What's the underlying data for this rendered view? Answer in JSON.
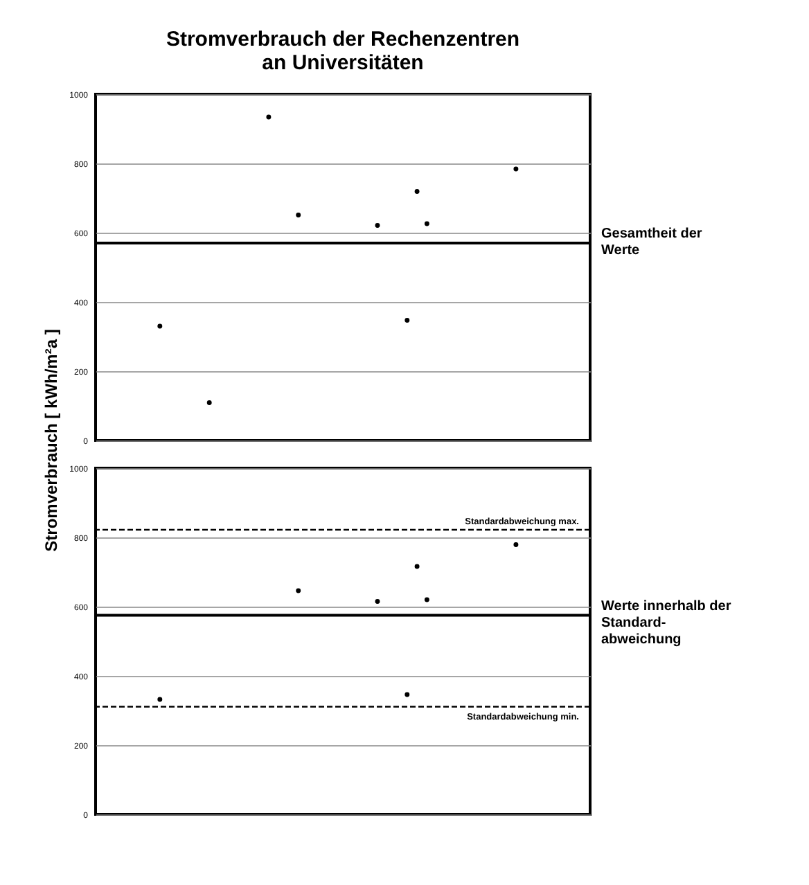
{
  "chart_data": [
    {
      "type": "scatter",
      "title": "Stromverbrauch der Rechenzentren\nan Universitäten",
      "ylabel": "Stromverbrauch  [ kWh/m²a ]",
      "categories": [
        null,
        null,
        null,
        null,
        null,
        null,
        null,
        null,
        null,
        null,
        null,
        null,
        null,
        null,
        null,
        null,
        null,
        null,
        null,
        null,
        null,
        null,
        null,
        null,
        null,
        null,
        null,
        null,
        null,
        null,
        null,
        null,
        null,
        null,
        null,
        null,
        null,
        null,
        null,
        null,
        null,
        null,
        null,
        null,
        null,
        null,
        null,
        null,
        null,
        null
      ],
      "series": [
        {
          "color": "#000000",
          "values": [
            null,
            null,
            null,
            null,
            null,
            null,
            330,
            null,
            null,
            null,
            null,
            109,
            null,
            null,
            null,
            null,
            null,
            934,
            null,
            null,
            651,
            null,
            null,
            null,
            null,
            null,
            null,
            null,
            621,
            null,
            null,
            347,
            719,
            626,
            null,
            null,
            null,
            null,
            null,
            null,
            null,
            null,
            784,
            null,
            null,
            null,
            null,
            null,
            null,
            null
          ]
        }
      ],
      "ylim": [
        0,
        1000
      ],
      "yticks": [
        0,
        200,
        400,
        600,
        800,
        1000
      ],
      "grid": "y",
      "tick_labels": "y",
      "marker": "circle",
      "ref_lines": [
        {
          "axis": "y",
          "value": 570,
          "label": "Gesamtheit der\nWerte",
          "line_style": "solid",
          "color": "#000000"
        }
      ]
    },
    {
      "type": "scatter",
      "categories": [
        null,
        null,
        null,
        null,
        null,
        null,
        null,
        null,
        null,
        null,
        null,
        null,
        null,
        null,
        null,
        null,
        null,
        null,
        null,
        null,
        null,
        null,
        null,
        null,
        null,
        null,
        null,
        null,
        null,
        null,
        null,
        null,
        null,
        null,
        null,
        null,
        null,
        null,
        null,
        null,
        null,
        null,
        null,
        null,
        null,
        null,
        null,
        null,
        null,
        null
      ],
      "series": [
        {
          "color": "#000000",
          "values": [
            null,
            null,
            null,
            null,
            null,
            null,
            332,
            null,
            null,
            null,
            null,
            null,
            null,
            null,
            null,
            null,
            null,
            null,
            null,
            null,
            646,
            null,
            null,
            null,
            null,
            null,
            null,
            null,
            615,
            null,
            null,
            346,
            716,
            620,
            null,
            null,
            null,
            null,
            null,
            null,
            null,
            null,
            779,
            null,
            null,
            null,
            null,
            null,
            null,
            null
          ]
        }
      ],
      "ylim": [
        0,
        1000
      ],
      "yticks": [
        0,
        200,
        400,
        600,
        800,
        1000
      ],
      "grid": "y",
      "tick_labels": "y",
      "marker": "circle",
      "ref_lines": [
        {
          "axis": "y",
          "value": 575,
          "label": "Werte innerhalb der\nStandard-\nabweichung",
          "line_style": "solid",
          "color": "#000000"
        },
        {
          "axis": "y",
          "value": 822,
          "label": "Standardabweichung max.",
          "line_style": "dashed",
          "color": "#000000"
        },
        {
          "axis": "y",
          "value": 311,
          "label": "Standardabweichung min.",
          "line_style": "dashed",
          "color": "#000000"
        }
      ]
    }
  ]
}
